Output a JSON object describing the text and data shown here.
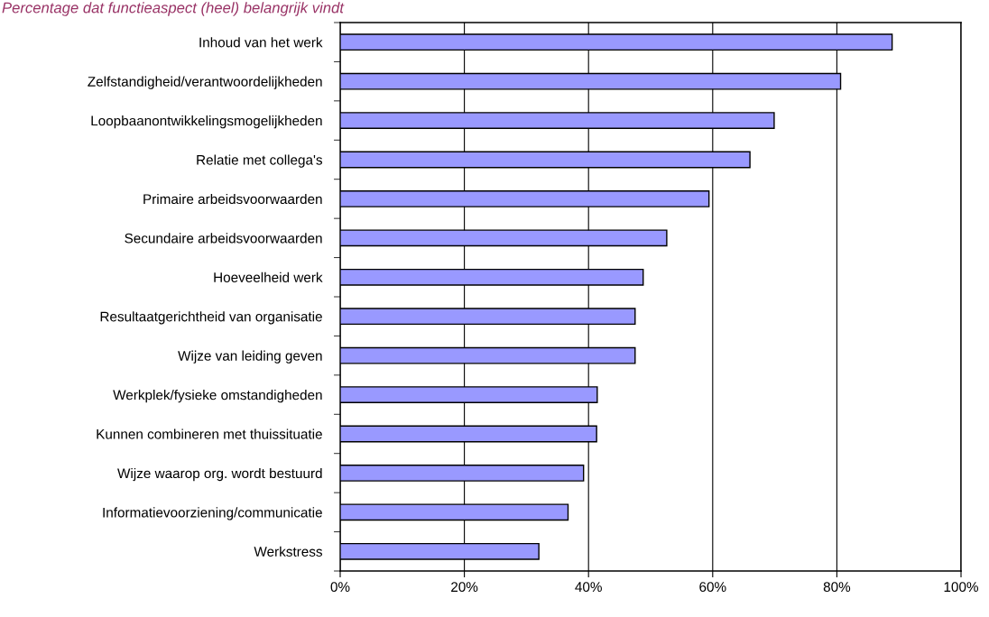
{
  "chart_data": {
    "type": "bar",
    "orientation": "horizontal",
    "title": "Percentage dat functieaspect (heel) belangrijk vindt",
    "categories": [
      "Inhoud van het werk",
      "Zelfstandigheid/verantwoordelijkheden",
      "Loopbaanontwikkelingsmogelijkheden",
      "Relatie met collega's",
      "Primaire arbeidsvoorwaarden",
      "Secundaire arbeidsvoorwaarden",
      "Hoeveelheid werk",
      "Resultaatgerichtheid van organisatie",
      "Wijze van leiding geven",
      "Werkplek/fysieke omstandigheden",
      "Kunnen combineren met thuissituatie",
      "Wijze waarop org. wordt bestuurd",
      "Informatievoorziening/communicatie",
      "Werkstress"
    ],
    "values": [
      88.9,
      80.6,
      69.9,
      66.0,
      59.4,
      52.6,
      48.8,
      47.5,
      47.5,
      41.4,
      41.3,
      39.2,
      36.7,
      32.0
    ],
    "color": "#9999ff",
    "xlim": [
      0,
      100
    ],
    "xticks": [
      {
        "value": 0,
        "label": "0%"
      },
      {
        "value": 20,
        "label": "20%"
      },
      {
        "value": 40,
        "label": "40%"
      },
      {
        "value": 60,
        "label": "60%"
      },
      {
        "value": 80,
        "label": "80%"
      },
      {
        "value": 100,
        "label": "100%"
      }
    ],
    "grid": "x",
    "legend": false
  }
}
